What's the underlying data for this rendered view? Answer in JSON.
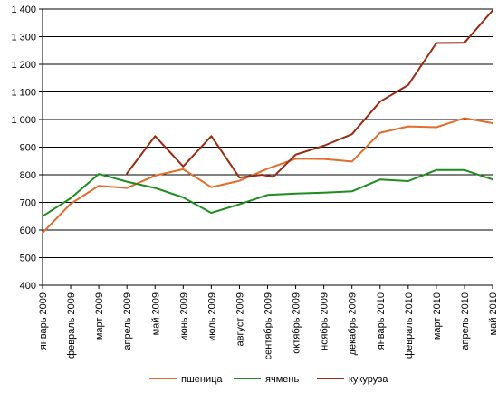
{
  "chart_data": {
    "type": "line",
    "title": "",
    "xlabel": "",
    "ylabel": "",
    "ylim": [
      400,
      1400
    ],
    "yticks": [
      400,
      500,
      600,
      700,
      800,
      900,
      1000,
      1100,
      1200,
      1300,
      1400
    ],
    "ytick_labels": [
      "400",
      "500",
      "600",
      "700",
      "800",
      "900",
      "1 000",
      "1 100",
      "1 200",
      "1 300",
      "1 400"
    ],
    "grid": "horizontal",
    "legend_position": "bottom",
    "categories": [
      "январь 2009",
      "февраль 2009",
      "март 2009",
      "апрель 2009",
      "май 2009",
      "июнь 2009",
      "июль 2009",
      "август 2009",
      "сентябрь 2009",
      "октябрь 2009",
      "ноябрь 2009",
      "декабрь 2009",
      "январь 2010",
      "февраль 2010",
      "март 2010",
      "апрель 2010",
      "май 2010"
    ],
    "series": [
      {
        "name": "пшеница",
        "color": "#E46C2C",
        "points": [
          [
            0,
            590
          ],
          [
            1,
            695
          ],
          [
            2,
            760
          ],
          [
            3,
            752
          ],
          [
            4,
            797
          ],
          [
            5,
            820
          ],
          [
            6,
            755
          ],
          [
            7,
            778
          ],
          [
            8,
            822
          ],
          [
            9,
            858
          ],
          [
            10,
            857
          ],
          [
            11,
            848
          ],
          [
            12,
            952
          ],
          [
            13,
            975
          ],
          [
            14,
            972
          ],
          [
            15,
            1005
          ],
          [
            16,
            987
          ]
        ]
      },
      {
        "name": "ячмень",
        "color": "#1E8C1E",
        "points": [
          [
            0,
            650
          ],
          [
            1,
            715
          ],
          [
            2,
            803
          ],
          [
            3,
            775
          ],
          [
            4,
            752
          ],
          [
            5,
            718
          ],
          [
            6,
            662
          ],
          [
            7,
            693
          ],
          [
            8,
            727
          ],
          [
            9,
            732
          ],
          [
            10,
            735
          ],
          [
            11,
            740
          ],
          [
            12,
            783
          ],
          [
            13,
            777
          ],
          [
            14,
            817
          ],
          [
            15,
            817
          ],
          [
            16,
            783
          ]
        ]
      },
      {
        "name": "кукуруза",
        "color": "#9A2A12",
        "points": [
          [
            3,
            805
          ],
          [
            4,
            940
          ],
          [
            5,
            830
          ],
          [
            6,
            940
          ],
          [
            7,
            790
          ],
          [
            7.8,
            800
          ],
          [
            8.2,
            792
          ],
          [
            9,
            873
          ],
          [
            10,
            905
          ],
          [
            11,
            947
          ],
          [
            12,
            1065
          ],
          [
            13,
            1125
          ],
          [
            14,
            1277
          ],
          [
            15,
            1278
          ],
          [
            16,
            1395
          ]
        ]
      }
    ]
  }
}
